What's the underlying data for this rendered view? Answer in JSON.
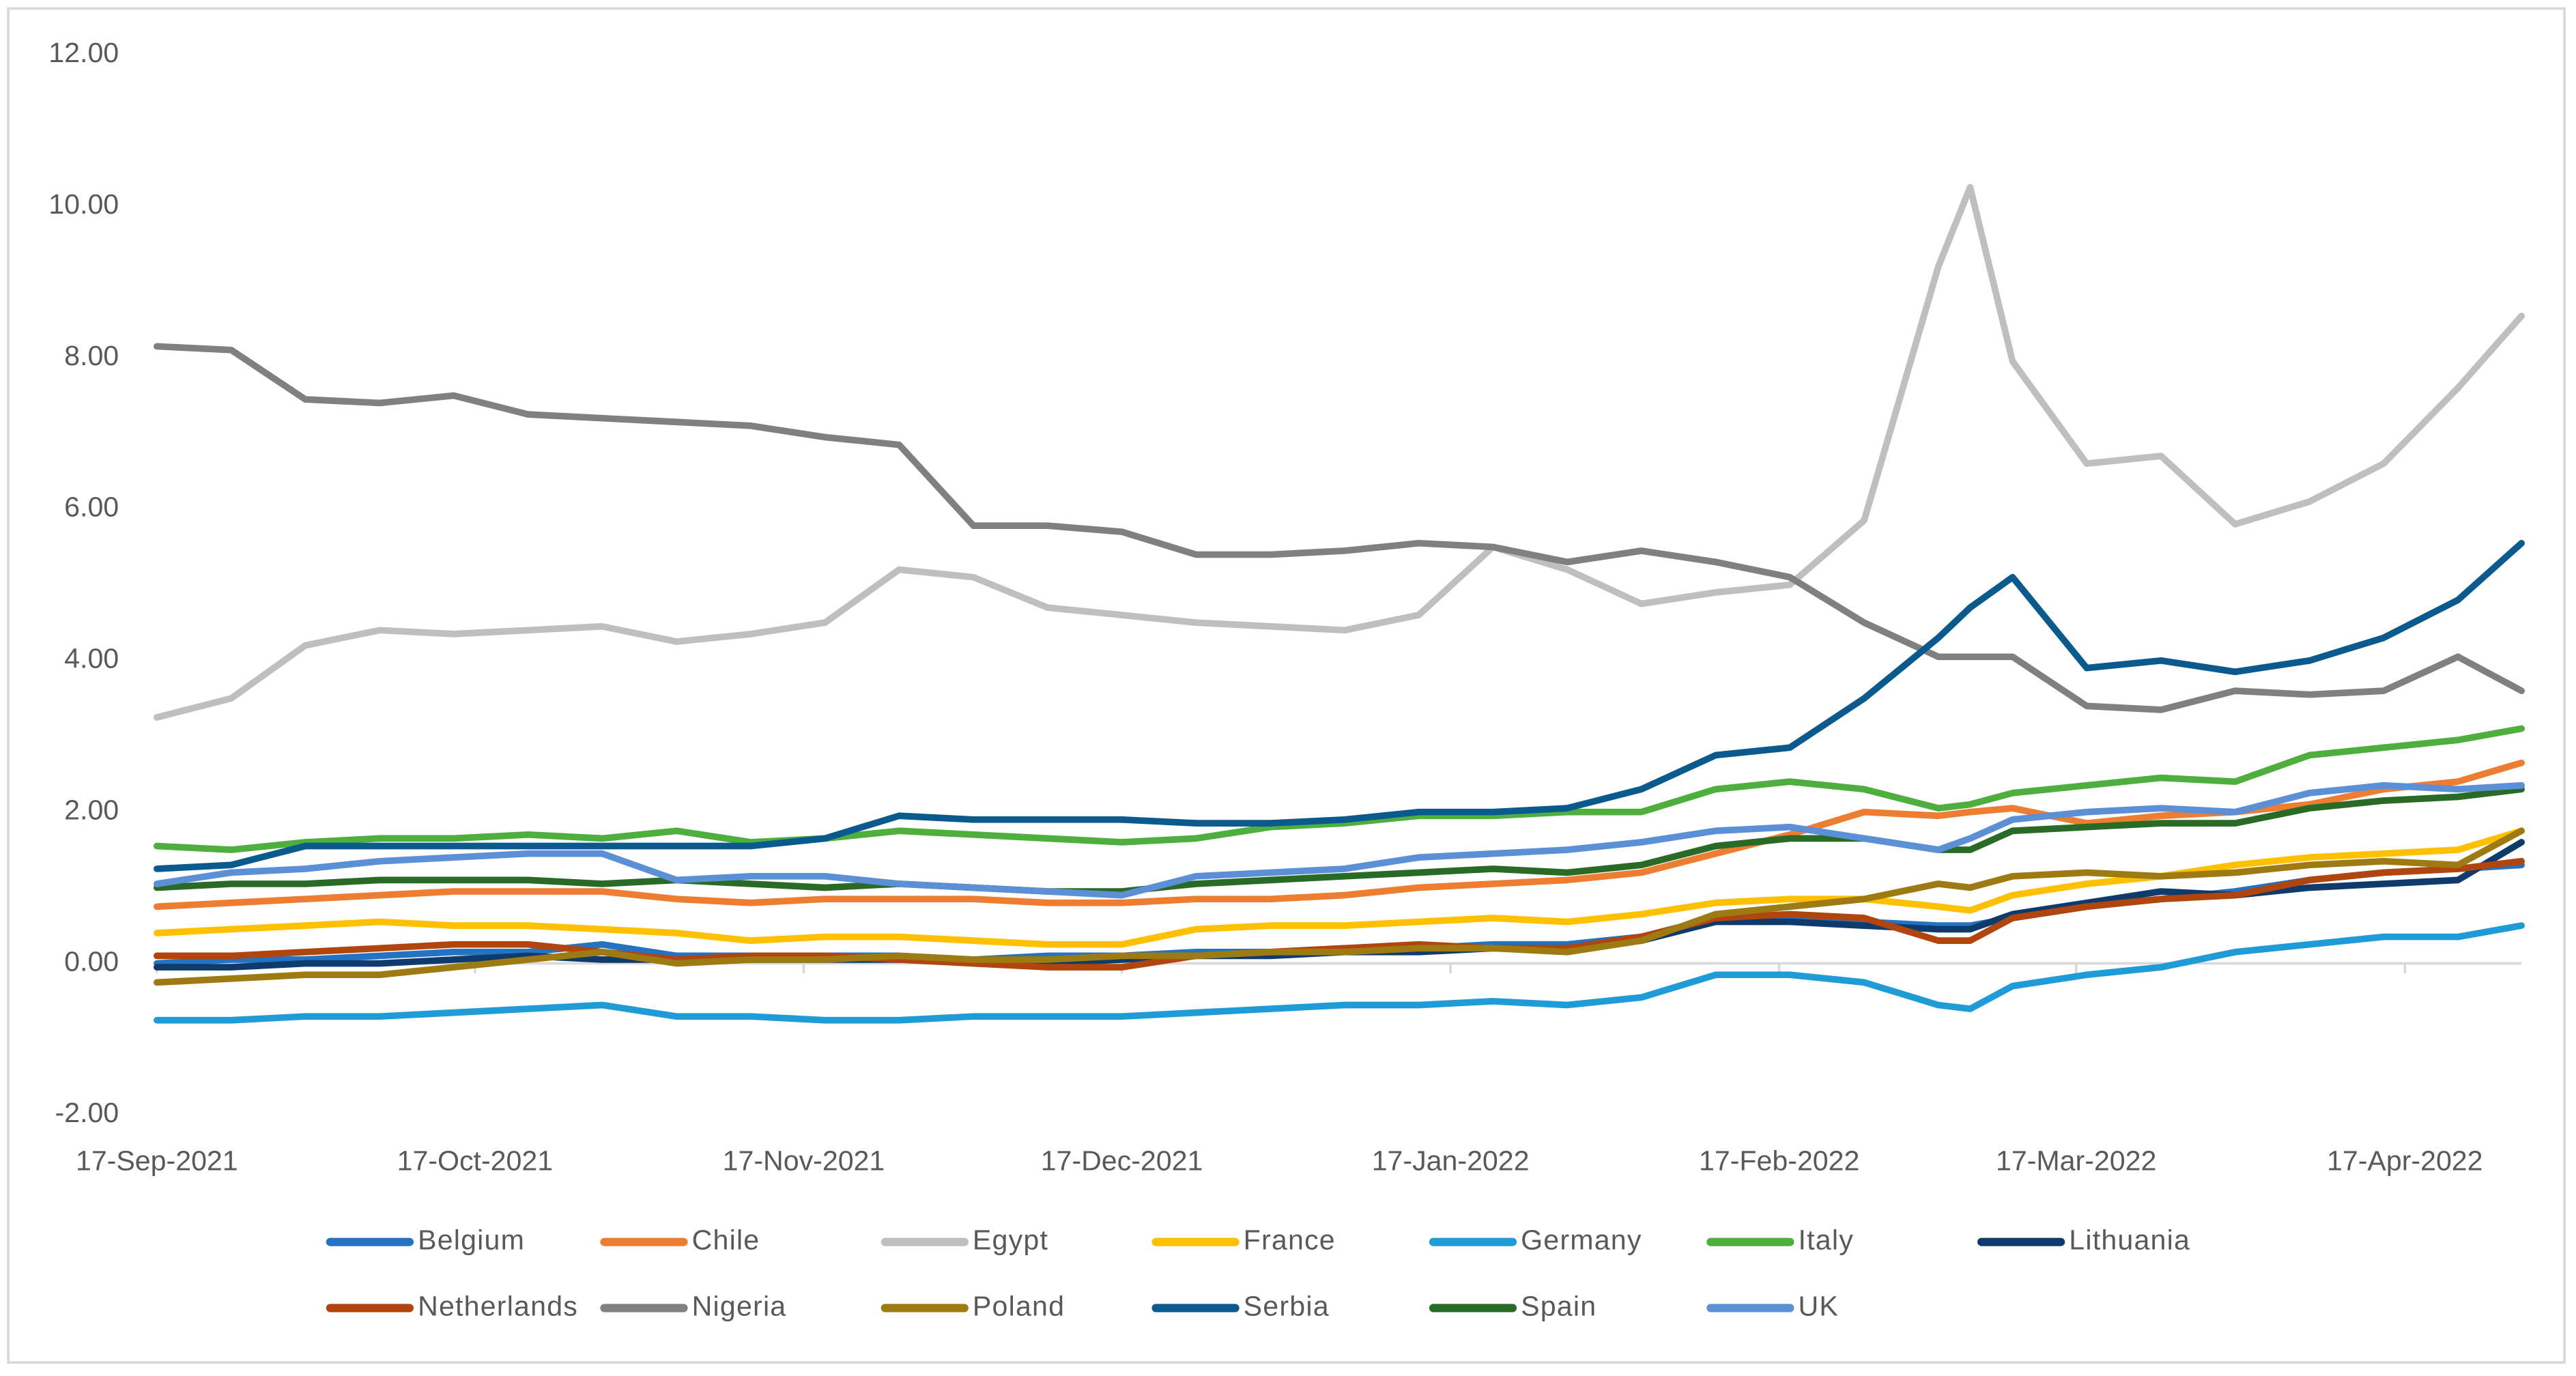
{
  "chart_data": {
    "type": "line",
    "x": [
      "2021-09-17",
      "2021-09-24",
      "2021-10-01",
      "2021-10-08",
      "2021-10-15",
      "2021-10-22",
      "2021-10-29",
      "2021-11-05",
      "2021-11-12",
      "2021-11-19",
      "2021-11-26",
      "2021-12-03",
      "2021-12-10",
      "2021-12-17",
      "2021-12-24",
      "2021-12-31",
      "2022-01-07",
      "2022-01-14",
      "2022-01-21",
      "2022-01-28",
      "2022-02-04",
      "2022-02-11",
      "2022-02-18",
      "2022-02-25",
      "2022-03-04",
      "2022-03-07",
      "2022-03-11",
      "2022-03-18",
      "2022-03-25",
      "2022-04-01",
      "2022-04-08",
      "2022-04-15",
      "2022-04-22",
      "2022-04-28"
    ],
    "xlim": [
      "2021-09-17",
      "2022-04-28"
    ],
    "xticks": [
      {
        "value": "2021-09-17",
        "label": "17-Sep-2021"
      },
      {
        "value": "2021-10-17",
        "label": "17-Oct-2021"
      },
      {
        "value": "2021-11-17",
        "label": "17-Nov-2021"
      },
      {
        "value": "2021-12-17",
        "label": "17-Dec-2021"
      },
      {
        "value": "2022-01-17",
        "label": "17-Jan-2022"
      },
      {
        "value": "2022-02-17",
        "label": "17-Feb-2022"
      },
      {
        "value": "2022-03-17",
        "label": "17-Mar-2022"
      },
      {
        "value": "2022-04-17",
        "label": "17-Apr-2022"
      }
    ],
    "ylim": [
      -2,
      12
    ],
    "yticks": [
      {
        "value": -2,
        "label": "-2.00"
      },
      {
        "value": 0,
        "label": "0.00"
      },
      {
        "value": 2,
        "label": "2.00"
      },
      {
        "value": 4,
        "label": "4.00"
      },
      {
        "value": 6,
        "label": "6.00"
      },
      {
        "value": 8,
        "label": "8.00"
      },
      {
        "value": 10,
        "label": "10.00"
      },
      {
        "value": 12,
        "label": "12.00"
      }
    ],
    "grid": false,
    "legend": "bottom",
    "series": [
      {
        "name": "Belgium",
        "color": "#2472c2",
        "values": [
          0.0,
          0.05,
          0.05,
          0.1,
          0.15,
          0.15,
          0.25,
          0.1,
          0.1,
          0.1,
          0.1,
          0.05,
          0.1,
          0.1,
          0.15,
          0.15,
          0.2,
          0.2,
          0.25,
          0.25,
          0.35,
          0.6,
          0.6,
          0.55,
          0.5,
          0.5,
          0.6,
          0.75,
          0.85,
          0.95,
          1.1,
          1.2,
          1.25,
          1.3
        ]
      },
      {
        "name": "Chile",
        "color": "#ed7d31",
        "values": [
          0.75,
          0.8,
          0.85,
          0.9,
          0.95,
          0.95,
          0.95,
          0.85,
          0.8,
          0.85,
          0.85,
          0.85,
          0.8,
          0.8,
          0.85,
          0.85,
          0.9,
          1.0,
          1.05,
          1.1,
          1.2,
          1.45,
          1.7,
          2.0,
          1.95,
          2.0,
          2.05,
          1.85,
          1.95,
          2.0,
          2.1,
          2.3,
          2.4,
          2.65
        ]
      },
      {
        "name": "Egypt",
        "color": "#bfbfbf",
        "values": [
          3.25,
          3.5,
          4.2,
          4.4,
          4.35,
          4.4,
          4.45,
          4.25,
          4.35,
          4.5,
          5.2,
          5.1,
          4.7,
          4.6,
          4.5,
          4.45,
          4.4,
          4.6,
          5.5,
          5.2,
          4.75,
          4.9,
          5.0,
          5.85,
          9.2,
          10.25,
          7.95,
          6.6,
          6.7,
          5.8,
          6.1,
          6.6,
          7.6,
          8.55
        ]
      },
      {
        "name": "France",
        "color": "#ffc000",
        "values": [
          0.4,
          0.45,
          0.5,
          0.55,
          0.5,
          0.5,
          0.45,
          0.4,
          0.3,
          0.35,
          0.35,
          0.3,
          0.25,
          0.25,
          0.45,
          0.5,
          0.5,
          0.55,
          0.6,
          0.55,
          0.65,
          0.8,
          0.85,
          0.85,
          0.75,
          0.7,
          0.9,
          1.05,
          1.15,
          1.3,
          1.4,
          1.45,
          1.5,
          1.75
        ]
      },
      {
        "name": "Germany",
        "color": "#1f9bd7",
        "values": [
          -0.75,
          -0.75,
          -0.7,
          -0.7,
          -0.65,
          -0.6,
          -0.55,
          -0.7,
          -0.7,
          -0.75,
          -0.75,
          -0.7,
          -0.7,
          -0.7,
          -0.65,
          -0.6,
          -0.55,
          -0.55,
          -0.5,
          -0.55,
          -0.45,
          -0.15,
          -0.15,
          -0.25,
          -0.55,
          -0.6,
          -0.3,
          -0.15,
          -0.05,
          0.15,
          0.25,
          0.35,
          0.35,
          0.5
        ]
      },
      {
        "name": "Italy",
        "color": "#4eae3e",
        "values": [
          1.55,
          1.5,
          1.6,
          1.65,
          1.65,
          1.7,
          1.65,
          1.75,
          1.6,
          1.65,
          1.75,
          1.7,
          1.65,
          1.6,
          1.65,
          1.8,
          1.85,
          1.95,
          1.95,
          2.0,
          2.0,
          2.3,
          2.4,
          2.3,
          2.05,
          2.1,
          2.25,
          2.35,
          2.45,
          2.4,
          2.75,
          2.85,
          2.95,
          3.1
        ]
      },
      {
        "name": "Lithuania",
        "color": "#0e3b6c",
        "values": [
          -0.05,
          -0.05,
          0.0,
          0.0,
          0.05,
          0.1,
          0.05,
          0.05,
          0.05,
          0.05,
          0.05,
          0.05,
          0.0,
          0.05,
          0.1,
          0.1,
          0.15,
          0.15,
          0.2,
          0.2,
          0.3,
          0.55,
          0.55,
          0.5,
          0.45,
          0.45,
          0.65,
          0.8,
          0.95,
          0.9,
          1.0,
          1.05,
          1.1,
          1.6
        ]
      },
      {
        "name": "Netherlands",
        "color": "#b0450e",
        "values": [
          0.1,
          0.1,
          0.15,
          0.2,
          0.25,
          0.25,
          0.15,
          0.05,
          0.1,
          0.1,
          0.05,
          0.0,
          -0.05,
          -0.05,
          0.1,
          0.15,
          0.2,
          0.25,
          0.2,
          0.2,
          0.35,
          0.6,
          0.65,
          0.6,
          0.3,
          0.3,
          0.6,
          0.75,
          0.85,
          0.9,
          1.1,
          1.2,
          1.25,
          1.35
        ]
      },
      {
        "name": "Nigeria",
        "color": "#808080",
        "values": [
          8.15,
          8.1,
          7.45,
          7.4,
          7.5,
          7.25,
          7.2,
          7.15,
          7.1,
          6.95,
          6.85,
          5.78,
          5.78,
          5.7,
          5.4,
          5.4,
          5.45,
          5.55,
          5.5,
          5.3,
          5.45,
          5.3,
          5.1,
          4.5,
          4.05,
          4.05,
          4.05,
          3.4,
          3.35,
          3.6,
          3.55,
          3.6,
          4.05,
          3.6
        ]
      },
      {
        "name": "Poland",
        "color": "#9e7b12",
        "values": [
          -0.25,
          -0.2,
          -0.15,
          -0.15,
          -0.05,
          0.05,
          0.15,
          0.0,
          0.05,
          0.05,
          0.1,
          0.05,
          0.05,
          0.1,
          0.1,
          0.15,
          0.15,
          0.2,
          0.2,
          0.15,
          0.3,
          0.65,
          0.75,
          0.85,
          1.05,
          1.0,
          1.15,
          1.2,
          1.15,
          1.2,
          1.3,
          1.35,
          1.3,
          1.75
        ]
      },
      {
        "name": "Serbia",
        "color": "#0b5a8e",
        "values": [
          1.25,
          1.3,
          1.55,
          1.55,
          1.55,
          1.55,
          1.55,
          1.55,
          1.55,
          1.65,
          1.95,
          1.9,
          1.9,
          1.9,
          1.85,
          1.85,
          1.9,
          2.0,
          2.0,
          2.05,
          2.3,
          2.75,
          2.85,
          3.5,
          4.3,
          4.7,
          5.1,
          3.9,
          4.0,
          3.85,
          4.0,
          4.3,
          4.8,
          5.55
        ]
      },
      {
        "name": "Spain",
        "color": "#2a6a27",
        "values": [
          1.0,
          1.05,
          1.05,
          1.1,
          1.1,
          1.1,
          1.05,
          1.1,
          1.05,
          1.0,
          1.05,
          1.0,
          0.95,
          0.95,
          1.05,
          1.1,
          1.15,
          1.2,
          1.25,
          1.2,
          1.3,
          1.55,
          1.65,
          1.65,
          1.5,
          1.5,
          1.75,
          1.8,
          1.85,
          1.85,
          2.05,
          2.15,
          2.2,
          2.3
        ]
      },
      {
        "name": "UK",
        "color": "#5b8fd6",
        "values": [
          1.05,
          1.2,
          1.25,
          1.35,
          1.4,
          1.45,
          1.45,
          1.1,
          1.15,
          1.15,
          1.05,
          1.0,
          0.95,
          0.9,
          1.15,
          1.2,
          1.25,
          1.4,
          1.45,
          1.5,
          1.6,
          1.75,
          1.8,
          1.65,
          1.5,
          1.65,
          1.9,
          2.0,
          2.05,
          2.0,
          2.25,
          2.35,
          2.3,
          2.35
        ]
      }
    ]
  }
}
